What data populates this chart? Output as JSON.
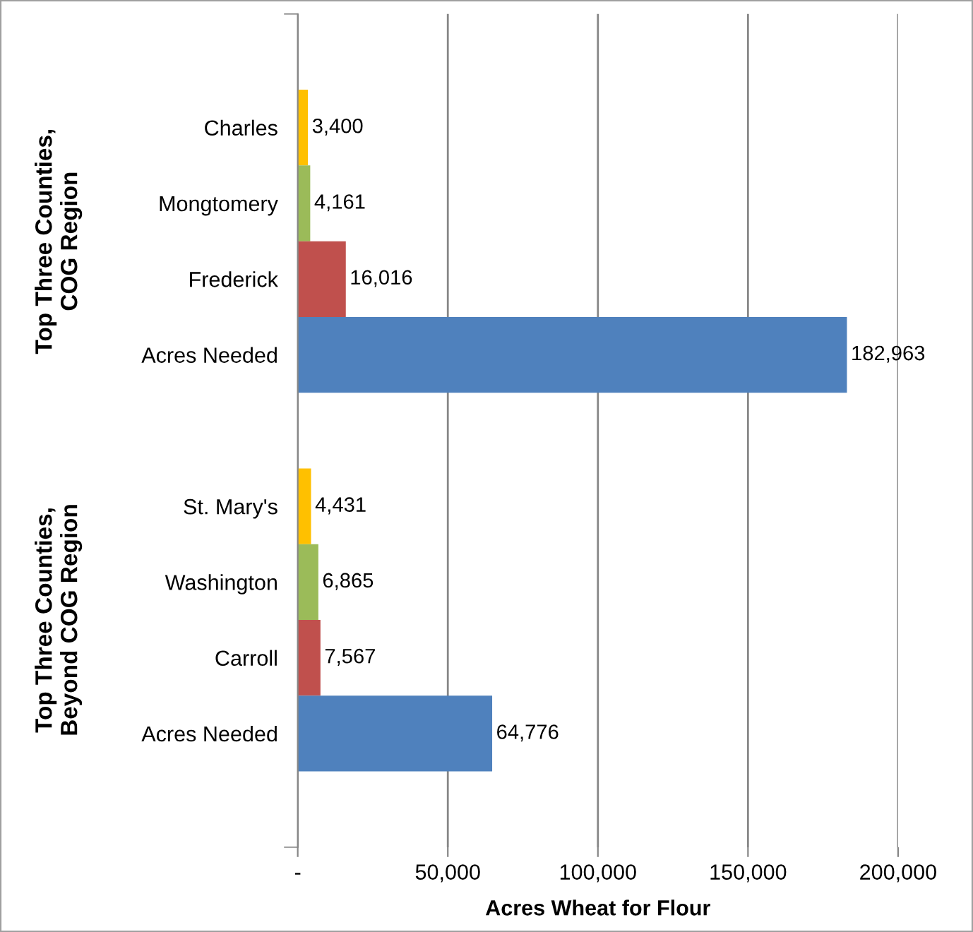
{
  "chart_data": {
    "type": "bar",
    "orientation": "horizontal",
    "xlabel": "Acres Wheat for Flour",
    "categories": [
      null,
      "Charles",
      "Mongtomery",
      "Frederick",
      "Acres Needed",
      null,
      "St. Mary's",
      "Washington",
      "Carroll",
      "Acres Needed",
      null
    ],
    "values": [
      null,
      3400,
      4161,
      16016,
      182963,
      null,
      4431,
      6865,
      7567,
      64776,
      null
    ],
    "colors": [
      null,
      "#ffc000",
      "#9bbb59",
      "#c0504d",
      "#4f81bd",
      null,
      "#ffc000",
      "#9bbb59",
      "#c0504d",
      "#4f81bd",
      null
    ],
    "value_labels": [
      null,
      "3,400",
      "4,161",
      "16,016",
      "182,963",
      null,
      "4,431",
      "6,865",
      "7,567",
      "64,776",
      null
    ],
    "annotations": [
      "Top Three Counties,\nCOG Region",
      "Top Three Counties,\nBeyond COG Region"
    ],
    "xlim": [
      0,
      200000
    ],
    "xticks": [
      {
        "value": 0,
        "label": "-"
      },
      {
        "value": 50000,
        "label": "50,000"
      },
      {
        "value": 100000,
        "label": "100,000"
      },
      {
        "value": 150000,
        "label": "150,000"
      },
      {
        "value": 200000,
        "label": "200,000"
      }
    ],
    "grid": "x"
  }
}
